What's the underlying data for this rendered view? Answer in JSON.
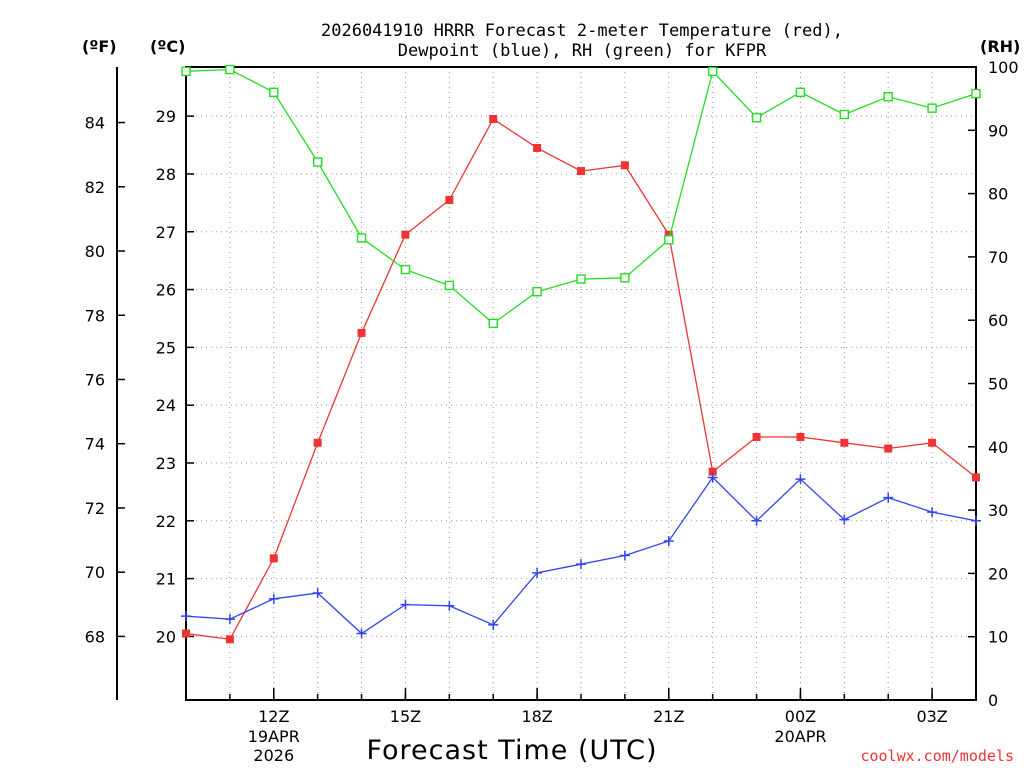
{
  "chart_data": {
    "type": "line",
    "title_lines": [
      "2026041910 HRRR Forecast 2-meter Temperature (red),",
      "Dewpoint (blue), RH (green) for KFPR"
    ],
    "xlabel": "Forecast Time (UTC)",
    "x_hours": [
      10,
      11,
      12,
      13,
      14,
      15,
      16,
      17,
      18,
      19,
      20,
      21,
      22,
      23,
      24,
      25,
      26,
      27,
      28
    ],
    "xlim": [
      10,
      28
    ],
    "x_ticks": [
      {
        "hour": 12,
        "label": "12Z",
        "sub1": "19APR",
        "sub2": "2026"
      },
      {
        "hour": 15,
        "label": "15Z",
        "sub1": "",
        "sub2": ""
      },
      {
        "hour": 18,
        "label": "18Z",
        "sub1": "",
        "sub2": ""
      },
      {
        "hour": 21,
        "label": "21Z",
        "sub1": "",
        "sub2": ""
      },
      {
        "hour": 24,
        "label": "00Z",
        "sub1": "20APR",
        "sub2": ""
      },
      {
        "hour": 27,
        "label": "03Z",
        "sub1": "",
        "sub2": ""
      }
    ],
    "left_axis_f": {
      "unit": "(ºF)",
      "ticks": [
        68,
        70,
        72,
        74,
        76,
        78,
        80,
        82,
        84
      ]
    },
    "left_axis_c": {
      "unit": "(ºC)",
      "ylim": [
        18.9,
        29.85
      ],
      "ticks": [
        20,
        21,
        22,
        23,
        24,
        25,
        26,
        27,
        28,
        29
      ]
    },
    "right_axis_rh": {
      "unit": "(RH)",
      "ylim": [
        0,
        100
      ],
      "ticks": [
        0,
        10,
        20,
        30,
        40,
        50,
        60,
        70,
        80,
        90,
        100
      ]
    },
    "series": [
      {
        "name": "Temperature",
        "axis": "c",
        "color": "#ee3333",
        "marker": "filled-square",
        "values": [
          20.05,
          19.95,
          21.35,
          23.35,
          25.25,
          26.95,
          27.55,
          28.95,
          28.45,
          28.05,
          28.15,
          26.95,
          22.85,
          23.45,
          23.45,
          23.35,
          23.25,
          23.35,
          22.75
        ]
      },
      {
        "name": "Dewpoint",
        "axis": "c",
        "color": "#3344ee",
        "marker": "plus",
        "values": [
          20.35,
          20.3,
          20.65,
          20.75,
          20.05,
          20.55,
          20.53,
          20.2,
          21.1,
          21.25,
          21.4,
          21.65,
          22.75,
          22.0,
          22.72,
          22.02,
          22.4,
          22.15,
          22.0
        ]
      },
      {
        "name": "RH",
        "axis": "rh",
        "color": "#22dd22",
        "marker": "open-square",
        "values": [
          99.3,
          99.6,
          96.0,
          85.0,
          73.0,
          68.0,
          65.5,
          59.5,
          64.5,
          66.5,
          66.7,
          72.7,
          99.3,
          92.0,
          96.0,
          92.5,
          95.3,
          93.5,
          95.8
        ]
      }
    ],
    "grid": true,
    "credit": "coolwx.com/models"
  }
}
